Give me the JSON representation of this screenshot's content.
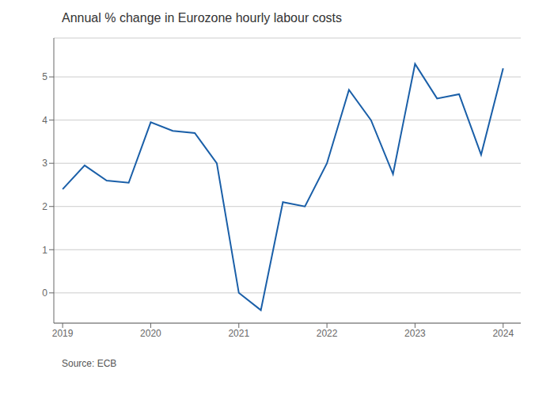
{
  "chart_data": {
    "type": "line",
    "title": "Annual % change in Eurozone hourly labour costs",
    "annotations": [
      "Source: ECB"
    ],
    "x": [
      2019.0,
      2019.25,
      2019.5,
      2019.75,
      2020.0,
      2020.25,
      2020.5,
      2020.75,
      2021.0,
      2021.25,
      2021.5,
      2021.75,
      2022.0,
      2022.25,
      2022.5,
      2022.75,
      2023.0,
      2023.25,
      2023.5,
      2023.75,
      2024.0
    ],
    "values": [
      2.4,
      2.95,
      2.6,
      2.55,
      3.95,
      3.75,
      3.7,
      3.0,
      0.0,
      -0.4,
      2.1,
      2.0,
      3.0,
      4.7,
      4.0,
      2.75,
      5.3,
      4.5,
      4.6,
      3.2,
      5.2
    ],
    "color": "#1a5fa8",
    "xlim": [
      2018.9,
      2024.2
    ],
    "xticks": [
      2019,
      2020,
      2021,
      2022,
      2023,
      2024
    ],
    "ylim": [
      -0.7,
      5.9
    ],
    "yticks": [
      0,
      1,
      2,
      3,
      4,
      5
    ],
    "grid": true
  }
}
